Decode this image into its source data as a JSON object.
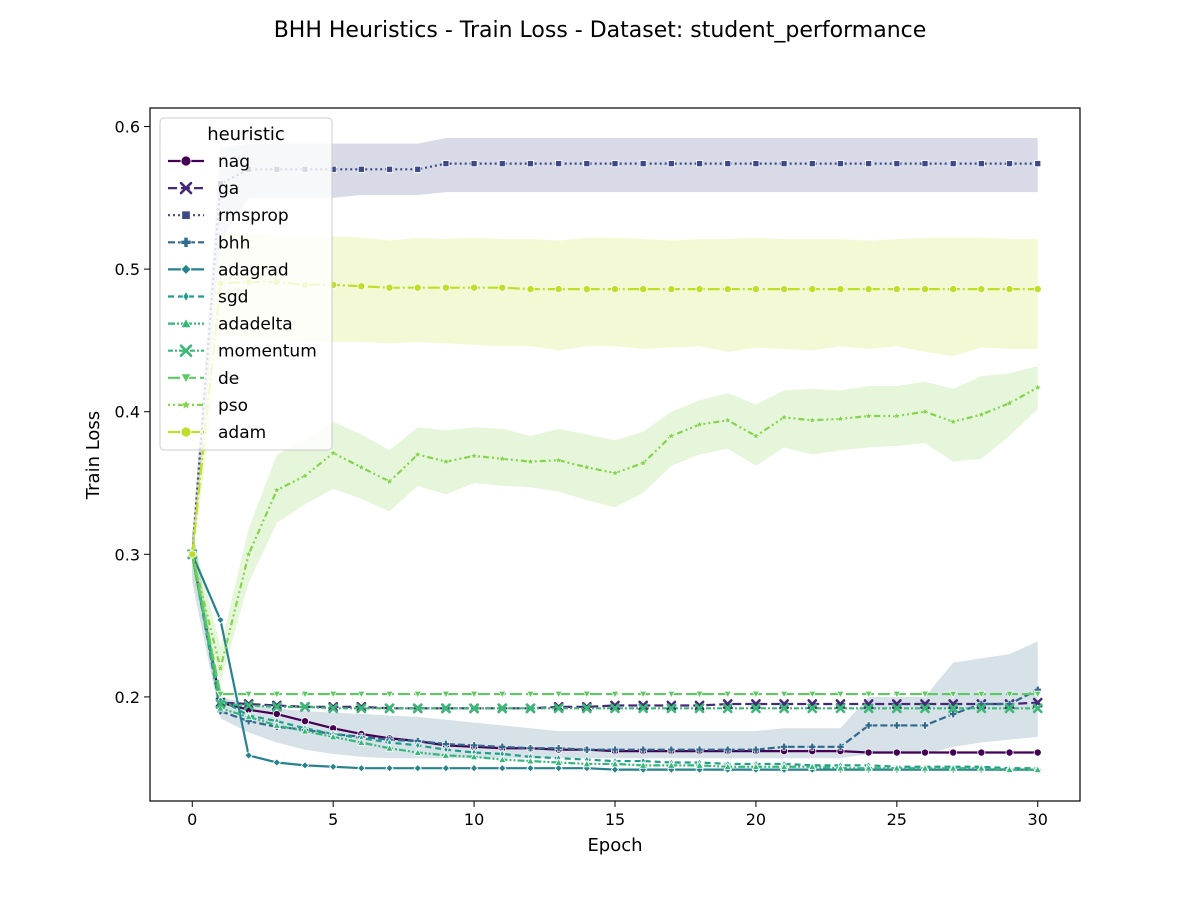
{
  "chart_data": {
    "type": "line",
    "title": "BHH Heuristics - Train Loss - Dataset: student_performance",
    "xlabel": "Epoch",
    "ylabel": "Train Loss",
    "xlim": [
      -1.5,
      31.5
    ],
    "ylim": [
      0.127,
      0.613
    ],
    "xticks": [
      0,
      5,
      10,
      15,
      20,
      25,
      30
    ],
    "yticks": [
      0.2,
      0.3,
      0.4,
      0.5,
      0.6
    ],
    "xtick_labels": [
      "0",
      "5",
      "10",
      "15",
      "20",
      "25",
      "30"
    ],
    "ytick_labels": [
      "0.2",
      "0.3",
      "0.4",
      "0.5",
      "0.6"
    ],
    "grid": false,
    "legend": {
      "title": "heuristic",
      "placement": "top-left"
    },
    "x": [
      0,
      1,
      2,
      3,
      4,
      5,
      6,
      7,
      8,
      9,
      10,
      11,
      12,
      13,
      14,
      15,
      16,
      17,
      18,
      19,
      20,
      21,
      22,
      23,
      24,
      25,
      26,
      27,
      28,
      29,
      30
    ],
    "series": [
      {
        "name": "nag",
        "color": "#440154",
        "dash": "",
        "marker": "circle",
        "values": [
          0.3,
          0.196,
          0.191,
          0.188,
          0.183,
          0.178,
          0.174,
          0.171,
          0.169,
          0.166,
          0.165,
          0.164,
          0.164,
          0.163,
          0.163,
          0.162,
          0.162,
          0.162,
          0.162,
          0.162,
          0.162,
          0.162,
          0.162,
          0.162,
          0.161,
          0.161,
          0.161,
          0.161,
          0.161,
          0.161,
          0.161
        ]
      },
      {
        "name": "ga",
        "color": "#482878",
        "dash": "9,4",
        "marker": "x",
        "values": [
          0.3,
          0.196,
          0.195,
          0.194,
          0.193,
          0.193,
          0.193,
          0.192,
          0.192,
          0.192,
          0.192,
          0.192,
          0.192,
          0.193,
          0.193,
          0.194,
          0.194,
          0.194,
          0.194,
          0.195,
          0.195,
          0.195,
          0.195,
          0.195,
          0.195,
          0.195,
          0.195,
          0.195,
          0.195,
          0.195,
          0.196
        ]
      },
      {
        "name": "rmsprop",
        "color": "#3e4989",
        "dash": "2,3",
        "marker": "square",
        "values": [
          0.3,
          0.56,
          0.57,
          0.57,
          0.57,
          0.57,
          0.57,
          0.57,
          0.57,
          0.574,
          0.574,
          0.574,
          0.574,
          0.574,
          0.574,
          0.574,
          0.574,
          0.574,
          0.574,
          0.574,
          0.574,
          0.574,
          0.574,
          0.574,
          0.574,
          0.574,
          0.574,
          0.574,
          0.574,
          0.574,
          0.574
        ],
        "band_low": [
          0.29,
          0.52,
          0.55,
          0.55,
          0.55,
          0.55,
          0.552,
          0.552,
          0.552,
          0.554,
          0.554,
          0.554,
          0.554,
          0.554,
          0.554,
          0.554,
          0.554,
          0.554,
          0.554,
          0.554,
          0.554,
          0.554,
          0.554,
          0.554,
          0.554,
          0.554,
          0.554,
          0.554,
          0.554,
          0.554,
          0.554
        ],
        "band_high": [
          0.31,
          0.585,
          0.588,
          0.588,
          0.588,
          0.588,
          0.588,
          0.588,
          0.588,
          0.592,
          0.592,
          0.592,
          0.592,
          0.592,
          0.592,
          0.592,
          0.592,
          0.592,
          0.592,
          0.592,
          0.592,
          0.592,
          0.592,
          0.592,
          0.592,
          0.592,
          0.592,
          0.592,
          0.592,
          0.592,
          0.592
        ]
      },
      {
        "name": "bhh",
        "color": "#31688e",
        "dash": "7,3",
        "marker": "plus",
        "values": [
          0.3,
          0.19,
          0.183,
          0.179,
          0.177,
          0.174,
          0.172,
          0.17,
          0.169,
          0.167,
          0.166,
          0.165,
          0.164,
          0.164,
          0.163,
          0.163,
          0.163,
          0.163,
          0.163,
          0.163,
          0.163,
          0.165,
          0.165,
          0.165,
          0.18,
          0.18,
          0.18,
          0.188,
          0.195,
          0.195,
          0.205
        ],
        "band_low": [
          0.28,
          0.185,
          0.175,
          0.168,
          0.163,
          0.16,
          0.158,
          0.157,
          0.157,
          0.157,
          0.157,
          0.157,
          0.157,
          0.157,
          0.157,
          0.157,
          0.157,
          0.157,
          0.157,
          0.157,
          0.157,
          0.157,
          0.157,
          0.157,
          0.16,
          0.16,
          0.16,
          0.165,
          0.168,
          0.17,
          0.172
        ],
        "band_high": [
          0.32,
          0.2,
          0.195,
          0.192,
          0.19,
          0.189,
          0.188,
          0.187,
          0.186,
          0.184,
          0.182,
          0.18,
          0.178,
          0.176,
          0.176,
          0.176,
          0.176,
          0.176,
          0.176,
          0.176,
          0.176,
          0.178,
          0.178,
          0.178,
          0.2,
          0.2,
          0.2,
          0.224,
          0.227,
          0.23,
          0.239
        ]
      },
      {
        "name": "adagrad",
        "color": "#26828e",
        "dash": "",
        "marker": "diamond",
        "values": [
          0.3,
          0.254,
          0.159,
          0.154,
          0.152,
          0.151,
          0.15,
          0.15,
          0.15,
          0.15,
          0.15,
          0.15,
          0.15,
          0.15,
          0.15,
          0.149,
          0.149,
          0.149,
          0.149,
          0.149,
          0.149,
          0.149,
          0.149,
          0.149,
          0.149,
          0.149,
          0.149,
          0.149,
          0.149,
          0.149,
          0.149
        ]
      },
      {
        "name": "sgd",
        "color": "#1f9e89",
        "dash": "6,4",
        "marker": "thin_diamond",
        "values": [
          0.3,
          0.198,
          0.187,
          0.183,
          0.178,
          0.174,
          0.171,
          0.168,
          0.166,
          0.163,
          0.161,
          0.16,
          0.158,
          0.157,
          0.156,
          0.155,
          0.155,
          0.154,
          0.154,
          0.153,
          0.153,
          0.153,
          0.152,
          0.152,
          0.152,
          0.151,
          0.151,
          0.151,
          0.151,
          0.15,
          0.15
        ]
      },
      {
        "name": "adadelta",
        "color": "#35b779",
        "dash": "7,2,2,2,2,2",
        "marker": "triangle_up",
        "values": [
          0.3,
          0.192,
          0.186,
          0.18,
          0.176,
          0.172,
          0.168,
          0.164,
          0.161,
          0.159,
          0.158,
          0.156,
          0.155,
          0.154,
          0.153,
          0.153,
          0.152,
          0.152,
          0.152,
          0.151,
          0.151,
          0.151,
          0.151,
          0.15,
          0.15,
          0.15,
          0.15,
          0.15,
          0.15,
          0.149,
          0.149
        ]
      },
      {
        "name": "momentum",
        "color": "#3aba76",
        "dash": "5,2,2,2",
        "marker": "x",
        "values": [
          0.3,
          0.195,
          0.194,
          0.193,
          0.193,
          0.192,
          0.192,
          0.192,
          0.192,
          0.192,
          0.192,
          0.192,
          0.192,
          0.192,
          0.192,
          0.192,
          0.192,
          0.192,
          0.192,
          0.192,
          0.192,
          0.192,
          0.192,
          0.192,
          0.192,
          0.192,
          0.192,
          0.192,
          0.192,
          0.192,
          0.192
        ]
      },
      {
        "name": "de",
        "color": "#5ec962",
        "dash": "12,4",
        "marker": "triangle_down",
        "values": [
          0.3,
          0.202,
          0.202,
          0.202,
          0.202,
          0.202,
          0.202,
          0.202,
          0.202,
          0.202,
          0.202,
          0.202,
          0.202,
          0.202,
          0.202,
          0.202,
          0.202,
          0.202,
          0.202,
          0.202,
          0.202,
          0.202,
          0.202,
          0.202,
          0.202,
          0.202,
          0.202,
          0.202,
          0.202,
          0.202,
          0.202
        ]
      },
      {
        "name": "pso",
        "color": "#84d44b",
        "dash": "2,3,2,3,6,3",
        "marker": "star",
        "values": [
          0.3,
          0.22,
          0.3,
          0.345,
          0.355,
          0.371,
          0.361,
          0.351,
          0.37,
          0.365,
          0.369,
          0.367,
          0.365,
          0.366,
          0.361,
          0.357,
          0.364,
          0.383,
          0.391,
          0.394,
          0.383,
          0.396,
          0.394,
          0.395,
          0.397,
          0.397,
          0.4,
          0.393,
          0.398,
          0.406,
          0.417
        ],
        "band_low": [
          0.285,
          0.21,
          0.28,
          0.322,
          0.335,
          0.346,
          0.339,
          0.33,
          0.348,
          0.342,
          0.35,
          0.348,
          0.347,
          0.344,
          0.338,
          0.333,
          0.343,
          0.362,
          0.37,
          0.374,
          0.362,
          0.375,
          0.37,
          0.373,
          0.375,
          0.376,
          0.378,
          0.365,
          0.367,
          0.383,
          0.402
        ],
        "band_high": [
          0.315,
          0.235,
          0.318,
          0.37,
          0.38,
          0.393,
          0.384,
          0.373,
          0.389,
          0.387,
          0.389,
          0.388,
          0.383,
          0.388,
          0.384,
          0.38,
          0.386,
          0.4,
          0.408,
          0.413,
          0.405,
          0.415,
          0.416,
          0.415,
          0.418,
          0.418,
          0.421,
          0.416,
          0.425,
          0.427,
          0.432
        ]
      },
      {
        "name": "adam",
        "color": "#bddf26",
        "dash": "12,3,2,3",
        "marker": "circle",
        "values": [
          0.3,
          0.49,
          0.491,
          0.491,
          0.489,
          0.489,
          0.488,
          0.487,
          0.487,
          0.487,
          0.487,
          0.487,
          0.486,
          0.486,
          0.486,
          0.486,
          0.486,
          0.486,
          0.486,
          0.486,
          0.486,
          0.486,
          0.486,
          0.486,
          0.486,
          0.486,
          0.486,
          0.486,
          0.486,
          0.486,
          0.486
        ],
        "band_low": [
          0.29,
          0.455,
          0.452,
          0.45,
          0.449,
          0.449,
          0.449,
          0.448,
          0.449,
          0.448,
          0.447,
          0.446,
          0.446,
          0.443,
          0.446,
          0.446,
          0.444,
          0.445,
          0.446,
          0.442,
          0.445,
          0.444,
          0.443,
          0.446,
          0.444,
          0.446,
          0.442,
          0.439,
          0.445,
          0.444,
          0.444
        ],
        "band_high": [
          0.31,
          0.525,
          0.525,
          0.524,
          0.522,
          0.523,
          0.522,
          0.52,
          0.522,
          0.521,
          0.522,
          0.521,
          0.521,
          0.52,
          0.522,
          0.522,
          0.521,
          0.52,
          0.521,
          0.521,
          0.522,
          0.521,
          0.521,
          0.521,
          0.52,
          0.521,
          0.522,
          0.522,
          0.522,
          0.521,
          0.521
        ]
      }
    ]
  }
}
